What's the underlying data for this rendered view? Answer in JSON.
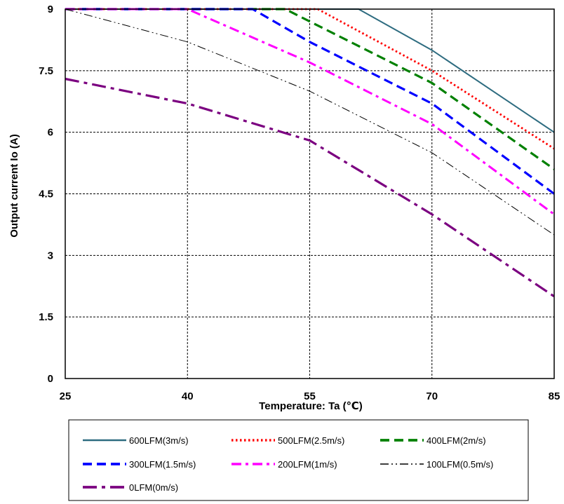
{
  "chart_data": {
    "type": "line",
    "xlabel": "Temperature: Ta (℃)",
    "ylabel": "Output current Io (A)",
    "xlim": [
      25,
      85
    ],
    "ylim": [
      0,
      9
    ],
    "xticks": [
      25,
      40,
      55,
      70,
      85
    ],
    "yticks": [
      0,
      1.5,
      3,
      4.5,
      6,
      7.5,
      9
    ],
    "xtick_labels": [
      "25",
      "40",
      "55",
      "70",
      "85"
    ],
    "ytick_labels": [
      "0",
      "1.5",
      "3",
      "4.5",
      "6",
      "7.5",
      "9"
    ],
    "grid": true,
    "legend_position": "bottom",
    "series": [
      {
        "name": "600LFM(3m/s)",
        "color": "#2e6c80",
        "style": "solid",
        "x": [
          25,
          61,
          70,
          85
        ],
        "y": [
          9,
          9,
          8,
          6
        ]
      },
      {
        "name": "500LFM(2.5m/s)",
        "color": "#ff0000",
        "style": "dotted",
        "x": [
          25,
          56,
          70,
          85
        ],
        "y": [
          9,
          9,
          7.5,
          5.6
        ]
      },
      {
        "name": "400LFM(2m/s)",
        "color": "#008000",
        "style": "dashed",
        "x": [
          25,
          52,
          55,
          70,
          85
        ],
        "y": [
          9,
          9,
          8.7,
          7.2,
          5.1
        ]
      },
      {
        "name": "300LFM(1.5m/s)",
        "color": "#0000ff",
        "style": "dashed",
        "x": [
          25,
          48,
          55,
          70,
          85
        ],
        "y": [
          9,
          9,
          8.2,
          6.7,
          4.5
        ]
      },
      {
        "name": "200LFM(1m/s)",
        "color": "#ff00ff",
        "style": "dashdot",
        "x": [
          25,
          40,
          55,
          70,
          85
        ],
        "y": [
          9,
          9,
          7.7,
          6.2,
          4.0
        ]
      },
      {
        "name": "100LFM(0.5m/s)",
        "color": "#000000",
        "style": "dashdotdot",
        "x": [
          25,
          40,
          55,
          70,
          85
        ],
        "y": [
          9,
          8.2,
          7.0,
          5.5,
          3.5
        ]
      },
      {
        "name": "0LFM(0m/s)",
        "color": "#7b0080",
        "style": "longdashdot",
        "x": [
          25,
          40,
          55,
          70,
          85
        ],
        "y": [
          7.3,
          6.7,
          5.8,
          4.0,
          2.0
        ]
      }
    ]
  }
}
